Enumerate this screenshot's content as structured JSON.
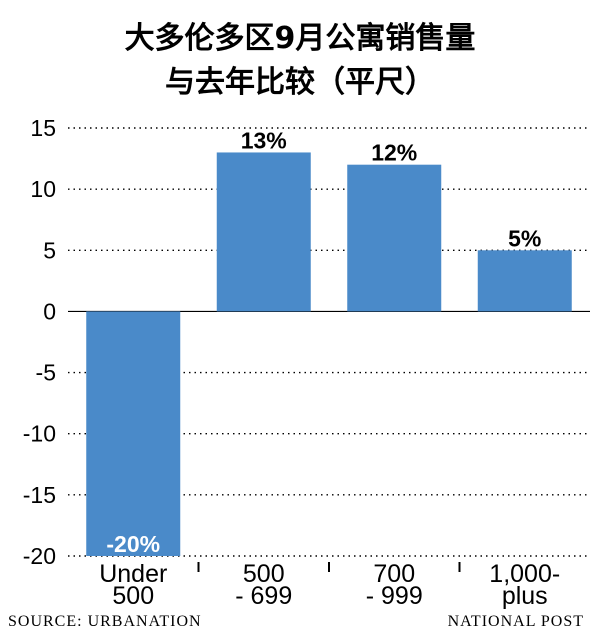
{
  "chart_data": {
    "type": "bar",
    "title": "大多伦多区9月公寓销售量",
    "subtitle": "与去年比较（平尺）",
    "categories": [
      "Under 500",
      "500 - 699",
      "700 - 999",
      "1,000- plus"
    ],
    "category_lines": [
      [
        "Under",
        "500"
      ],
      [
        "500",
        "- 699"
      ],
      [
        "700",
        "- 999"
      ],
      [
        "1,000-",
        "plus"
      ]
    ],
    "values": [
      -20,
      13,
      12,
      5
    ],
    "data_labels": [
      "-20%",
      "13%",
      "12%",
      "5%"
    ],
    "ylim": [
      -20,
      15
    ],
    "yticks": [
      15,
      10,
      5,
      0,
      -5,
      -10,
      -15,
      -20
    ],
    "ytick_labels": [
      "15",
      "10",
      "5",
      "0",
      "-5",
      "-10",
      "-15",
      "-20"
    ],
    "grid": true,
    "bar_color": "#4a8ac9",
    "xlabel": "",
    "ylabel": ""
  },
  "source": "SOURCE:  URBANATION",
  "credit": "NATIONAL POST"
}
